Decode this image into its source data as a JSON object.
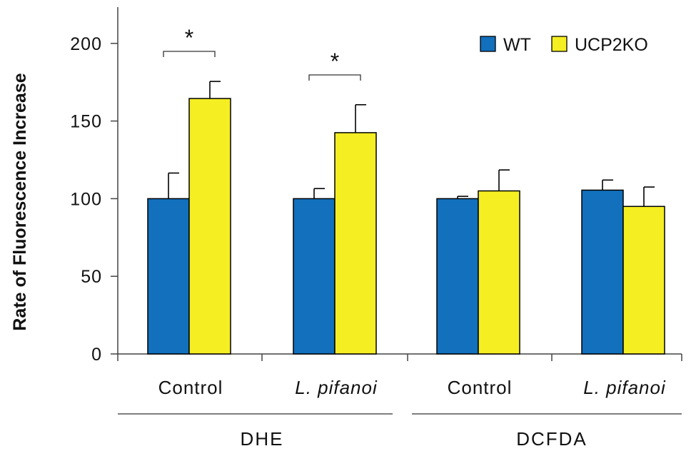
{
  "chart_data": {
    "type": "bar",
    "ylabel": "Rate of Fluorescence Increase",
    "ylim": [
      0,
      220
    ],
    "yticks": [
      "0",
      "50",
      "100",
      "150",
      "200"
    ],
    "yticks_values": [
      0,
      50,
      100,
      150,
      200
    ],
    "categories": [
      "Control",
      "L. pifanoi",
      "Control",
      "L. pifanoi"
    ],
    "category_italic": [
      false,
      true,
      false,
      true
    ],
    "groups": [
      {
        "name": "DHE",
        "categories": [
          0,
          1
        ]
      },
      {
        "name": "DCFDA",
        "categories": [
          2,
          3
        ]
      }
    ],
    "series": [
      {
        "name": "WT",
        "color": "#1270bd",
        "values": [
          100,
          100,
          100,
          105.5
        ],
        "errors": [
          16.5,
          6.5,
          1.5,
          6.5
        ]
      },
      {
        "name": "UCP2KO",
        "color": "#f5ee22",
        "values": [
          164.5,
          142.5,
          105,
          95
        ],
        "errors": [
          11,
          18,
          13.5,
          12.5
        ]
      }
    ],
    "annotations": [
      {
        "text": "*",
        "category": 0
      },
      {
        "text": "*",
        "category": 1
      }
    ],
    "legend_position": "top-right"
  }
}
